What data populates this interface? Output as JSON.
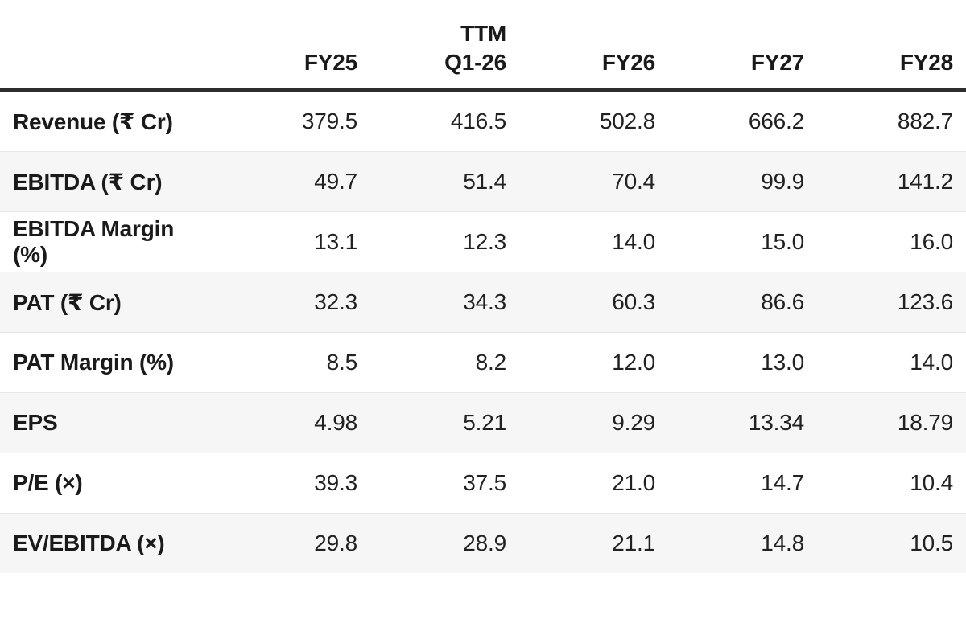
{
  "chart_data": {
    "type": "table",
    "title": "Financial projections table",
    "columns": [
      {
        "top": "",
        "label": "FY25"
      },
      {
        "top": "TTM",
        "label": "Q1-26"
      },
      {
        "top": "",
        "label": "FY26"
      },
      {
        "top": "",
        "label": "FY27"
      },
      {
        "top": "",
        "label": "FY28"
      }
    ],
    "corner_label": "",
    "rows": [
      {
        "label": "Revenue (₹ Cr)",
        "values": [
          "379.5",
          "416.5",
          "502.8",
          "666.2",
          "882.7"
        ]
      },
      {
        "label": "EBITDA (₹ Cr)",
        "values": [
          "49.7",
          "51.4",
          "70.4",
          "99.9",
          "141.2"
        ]
      },
      {
        "label": "EBITDA Margin (%)",
        "values": [
          "13.1",
          "12.3",
          "14.0",
          "15.0",
          "16.0"
        ]
      },
      {
        "label": "PAT (₹ Cr)",
        "values": [
          "32.3",
          "34.3",
          "60.3",
          "86.6",
          "123.6"
        ]
      },
      {
        "label": "PAT Margin (%)",
        "values": [
          "8.5",
          "8.2",
          "12.0",
          "13.0",
          "14.0"
        ]
      },
      {
        "label": "EPS",
        "values": [
          "4.98",
          "5.21",
          "9.29",
          "13.34",
          "18.79"
        ]
      },
      {
        "label": "P/E (×)",
        "values": [
          "39.3",
          "37.5",
          "21.0",
          "14.7",
          "10.4"
        ]
      },
      {
        "label": "EV/EBITDA (×)",
        "values": [
          "29.8",
          "28.9",
          "21.1",
          "14.8",
          "10.5"
        ]
      }
    ],
    "layout": {
      "stripe_color": "#f6f6f6",
      "header_border_color": "#2e2e2e",
      "row_border_color": "#e7e7e7",
      "label_text_color": "#1a1a1a",
      "value_text_color": "#212121",
      "background_color": "#ffffff"
    }
  }
}
